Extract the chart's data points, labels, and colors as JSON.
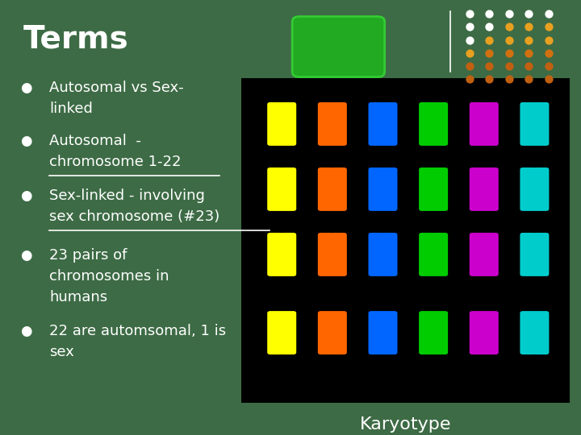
{
  "bg_color": "#3d6b45",
  "title": "Terms",
  "title_color": "#ffffff",
  "title_fontsize": 28,
  "bullet_color": "#ffffff",
  "bullet_fontsize": 13,
  "green_box_color": "#22aa22",
  "green_box_border": "#33cc33",
  "caption": "Karyotype",
  "caption_color": "#ffffff",
  "caption_fontsize": 16,
  "divider_color": "#ffffff",
  "dot_colors_grid": [
    [
      "#ffffff",
      "#ffffff",
      "#ffffff",
      "#ffffff",
      "#ffffff"
    ],
    [
      "#ffffff",
      "#ffffff",
      "#e8a020",
      "#e8a020",
      "#e8a020"
    ],
    [
      "#ffffff",
      "#e8a020",
      "#e8a020",
      "#e8a020",
      "#e8a020"
    ],
    [
      "#e8a020",
      "#d07010",
      "#d07010",
      "#d07010",
      "#d07010"
    ],
    [
      "#c06010",
      "#c06010",
      "#c06010",
      "#c06010",
      "#c06010"
    ],
    [
      "#c06010",
      "#c06010",
      "#c06010",
      "#c06010",
      "#c06010"
    ]
  ],
  "bullet_items": [
    {
      "lines": [
        {
          "text": "Autosomal vs Sex-",
          "underline": false
        },
        {
          "text": "linked",
          "underline": false
        }
      ]
    },
    {
      "lines": [
        {
          "text": "Autosomal  -",
          "underline": false
        },
        {
          "text": "chromosome 1-22",
          "underline": true
        }
      ]
    },
    {
      "lines": [
        {
          "text": "Sex-linked - involving",
          "underline": false
        },
        {
          "text": "sex chromosome (#23)",
          "underline": true
        }
      ]
    },
    {
      "lines": [
        {
          "text": "23 pairs of",
          "underline": false
        },
        {
          "text": "chromosomes in",
          "underline": false
        },
        {
          "text": "humans",
          "underline": false
        }
      ]
    },
    {
      "lines": [
        {
          "text": "22 are automsomal, 1 is",
          "underline": false
        },
        {
          "text": "sex",
          "underline": false
        }
      ]
    }
  ]
}
